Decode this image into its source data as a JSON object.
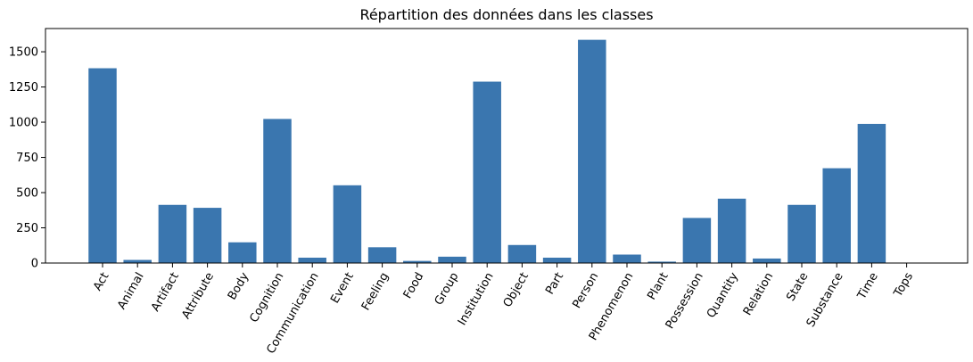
{
  "chart_data": {
    "type": "bar",
    "title": "Répartition des données dans les classes",
    "xlabel": "",
    "ylabel": "",
    "categories": [
      "Act",
      "Animal",
      "Artifact",
      "Attribute",
      "Body",
      "Cognition",
      "Communication",
      "Event",
      "Feeling",
      "Food",
      "Group",
      "Institution",
      "Object",
      "Part",
      "Person",
      "Phenomenon",
      "Plant",
      "Possession",
      "Quantity",
      "Relation",
      "State",
      "Substance",
      "Time",
      "Tops"
    ],
    "values": [
      1383,
      22,
      413,
      392,
      147,
      1023,
      38,
      552,
      112,
      15,
      45,
      1288,
      128,
      38,
      1585,
      60,
      10,
      320,
      457,
      32,
      413,
      673,
      988,
      0
    ],
    "yticks": [
      "0",
      "250",
      "500",
      "750",
      "1000",
      "1250",
      "1500"
    ],
    "ylim": [
      0,
      1665
    ],
    "xtick_rotation": 60,
    "grid": false,
    "legend": "none",
    "bar_color": "#3a76af"
  }
}
